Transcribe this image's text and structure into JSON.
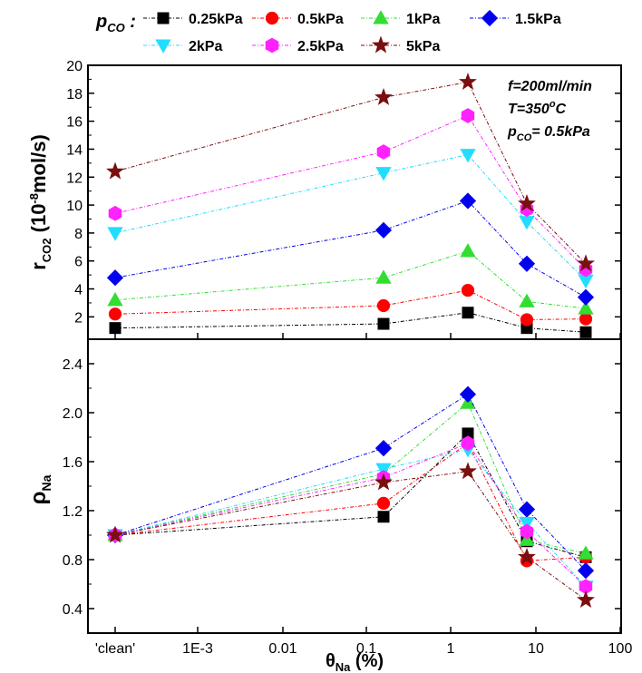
{
  "chart_data": {
    "type": "line",
    "x_category_labels": [
      "'clean'",
      "1E-3",
      "0.01",
      "0.1",
      "1",
      "10",
      "100"
    ],
    "x_values": [
      "clean",
      0.16,
      1.6,
      8,
      40
    ],
    "xlabel": "θNa (%)",
    "xlabel_parts": {
      "main": "θ",
      "sub": "Na",
      "rest": " (%)"
    },
    "legend_title": "pCO :",
    "legend_title_parts": {
      "main": "p",
      "sub": "CO",
      "rest": " :"
    },
    "series": [
      {
        "name": "0.25kPa",
        "color": "#000000",
        "marker": "square",
        "top": [
          1.2,
          1.5,
          2.3,
          1.2,
          0.9
        ],
        "bottom": [
          1.0,
          1.15,
          1.83,
          0.95,
          0.82
        ]
      },
      {
        "name": "0.5kPa",
        "color": "#ff0000",
        "marker": "circle",
        "top": [
          2.2,
          2.8,
          3.9,
          1.8,
          1.85
        ],
        "bottom": [
          1.0,
          1.26,
          1.75,
          0.79,
          0.82
        ]
      },
      {
        "name": "1kPa",
        "color": "#33dd33",
        "marker": "triangle",
        "top": [
          3.2,
          4.8,
          6.7,
          3.1,
          2.6
        ],
        "bottom": [
          1.0,
          1.5,
          2.08,
          0.96,
          0.85
        ]
      },
      {
        "name": "1.5kPa",
        "color": "#0000ee",
        "marker": "diamond",
        "top": [
          4.8,
          8.2,
          10.3,
          5.8,
          3.4
        ],
        "bottom": [
          1.0,
          1.71,
          2.15,
          1.21,
          0.71
        ]
      },
      {
        "name": "2kPa",
        "color": "#22ddff",
        "marker": "triangle-down",
        "top": [
          8.0,
          12.3,
          13.6,
          8.8,
          4.6
        ],
        "bottom": [
          1.0,
          1.54,
          1.7,
          1.1,
          0.58
        ]
      },
      {
        "name": "2.5kPa",
        "color": "#ff22ff",
        "marker": "hexagon",
        "top": [
          9.4,
          13.8,
          16.4,
          9.7,
          5.4
        ],
        "bottom": [
          1.0,
          1.47,
          1.75,
          1.03,
          0.58
        ]
      },
      {
        "name": "5kPa",
        "color": "#7a0f0f",
        "marker": "star",
        "top": [
          12.4,
          17.7,
          18.8,
          10.1,
          5.8
        ],
        "bottom": [
          1.0,
          1.43,
          1.52,
          0.82,
          0.47
        ]
      }
    ],
    "panels": [
      {
        "id": "top",
        "ylabel": "rCO2 (10-8mol/s)",
        "ylabel_parts": {
          "main": "r",
          "sub": "CO2",
          "rest1": " (10",
          "sup": "-8",
          "rest2": "mol/s)"
        },
        "ylim": [
          0.4,
          20
        ],
        "yticks": [
          2,
          4,
          6,
          8,
          10,
          12,
          14,
          16,
          18,
          20
        ],
        "annotations": [
          "f=200ml/min",
          "T=350oC",
          "pCO= 0.5kPa"
        ],
        "annotation_parts": [
          {
            "text": "f=200ml/min"
          },
          {
            "text": "T=350",
            "sup": "o",
            "after": "C"
          },
          {
            "text": "p",
            "sub": "CO",
            "after": "= 0.5kPa"
          }
        ]
      },
      {
        "id": "bottom",
        "ylabel": "ρNa",
        "ylabel_parts": {
          "main": "ρ",
          "sub": "Na"
        },
        "ylim": [
          0.2,
          2.6
        ],
        "yticks": [
          0.4,
          0.8,
          1.2,
          1.6,
          2.0,
          2.4
        ],
        "ytick_labels": [
          "0.4",
          "0.8",
          "1.2",
          "1.6",
          "2.0",
          "2.4"
        ]
      }
    ],
    "grid": false,
    "legend_position": "top"
  }
}
